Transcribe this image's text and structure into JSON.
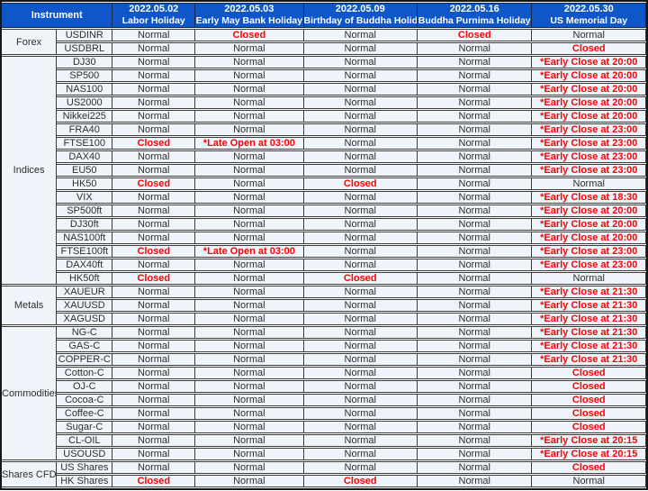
{
  "header": {
    "instrument_label": "Instrument"
  },
  "columns": [
    {
      "date": "2022.05.02",
      "holiday": "Labor Holiday"
    },
    {
      "date": "2022.05.03",
      "holiday": "Early May Bank Holiday"
    },
    {
      "date": "2022.05.09",
      "holiday": "Birthday of Buddha Holiday"
    },
    {
      "date": "2022.05.16",
      "holiday": "Buddha Purnima Holiday"
    },
    {
      "date": "2022.05.30",
      "holiday": "US Memorial Day"
    }
  ],
  "groups": [
    {
      "name": "Forex",
      "rows": [
        {
          "instrument": "USDINR",
          "values": [
            "Normal",
            "Closed",
            "Normal",
            "Closed",
            "Normal"
          ]
        },
        {
          "instrument": "USDBRL",
          "values": [
            "Normal",
            "Normal",
            "Normal",
            "Normal",
            "Closed"
          ]
        }
      ]
    },
    {
      "name": "Indices",
      "rows": [
        {
          "instrument": "DJ30",
          "values": [
            "Normal",
            "Normal",
            "Normal",
            "Normal",
            "*Early Close at 20:00"
          ]
        },
        {
          "instrument": "SP500",
          "values": [
            "Normal",
            "Normal",
            "Normal",
            "Normal",
            "*Early Close at 20:00"
          ]
        },
        {
          "instrument": "NAS100",
          "values": [
            "Normal",
            "Normal",
            "Normal",
            "Normal",
            "*Early Close at 20:00"
          ]
        },
        {
          "instrument": "US2000",
          "values": [
            "Normal",
            "Normal",
            "Normal",
            "Normal",
            "*Early Close at 20:00"
          ]
        },
        {
          "instrument": "Nikkei225",
          "values": [
            "Normal",
            "Normal",
            "Normal",
            "Normal",
            "*Early Close at 20:00"
          ]
        },
        {
          "instrument": "FRA40",
          "values": [
            "Normal",
            "Normal",
            "Normal",
            "Normal",
            "*Early Close at 23:00"
          ]
        },
        {
          "instrument": "FTSE100",
          "values": [
            "Closed",
            "*Late Open at 03:00",
            "Normal",
            "Normal",
            "*Early Close at 23:00"
          ]
        },
        {
          "instrument": "DAX40",
          "values": [
            "Normal",
            "Normal",
            "Normal",
            "Normal",
            "*Early Close at 23:00"
          ]
        },
        {
          "instrument": "EU50",
          "values": [
            "Normal",
            "Normal",
            "Normal",
            "Normal",
            "*Early Close at 23:00"
          ]
        },
        {
          "instrument": "HK50",
          "values": [
            "Closed",
            "Normal",
            "Closed",
            "Normal",
            "Normal"
          ]
        },
        {
          "instrument": "VIX",
          "values": [
            "Normal",
            "Normal",
            "Normal",
            "Normal",
            "*Early Close at 18:30"
          ]
        },
        {
          "instrument": "SP500ft",
          "values": [
            "Normal",
            "Normal",
            "Normal",
            "Normal",
            "*Early Close at 20:00"
          ]
        },
        {
          "instrument": "DJ30ft",
          "values": [
            "Normal",
            "Normal",
            "Normal",
            "Normal",
            "*Early Close at 20:00"
          ]
        },
        {
          "instrument": "NAS100ft",
          "values": [
            "Normal",
            "Normal",
            "Normal",
            "Normal",
            "*Early Close at 20:00"
          ]
        },
        {
          "instrument": "FTSE100ft",
          "values": [
            "Closed",
            "*Late Open at 03:00",
            "Normal",
            "Normal",
            "*Early Close at 23:00"
          ]
        },
        {
          "instrument": "DAX40ft",
          "values": [
            "Normal",
            "Normal",
            "Normal",
            "Normal",
            "*Early Close at 23:00"
          ]
        },
        {
          "instrument": "HK50ft",
          "values": [
            "Closed",
            "Normal",
            "Closed",
            "Normal",
            "Normal"
          ]
        }
      ]
    },
    {
      "name": "Metals",
      "rows": [
        {
          "instrument": "XAUEUR",
          "values": [
            "Normal",
            "Normal",
            "Normal",
            "Normal",
            "*Early Close at 21:30"
          ]
        },
        {
          "instrument": "XAUUSD",
          "values": [
            "Normal",
            "Normal",
            "Normal",
            "Normal",
            "*Early Close at 21:30"
          ]
        },
        {
          "instrument": "XAGUSD",
          "values": [
            "Normal",
            "Normal",
            "Normal",
            "Normal",
            "*Early Close at 21:30"
          ]
        }
      ]
    },
    {
      "name": "Commodities",
      "rows": [
        {
          "instrument": "NG-C",
          "values": [
            "Normal",
            "Normal",
            "Normal",
            "Normal",
            "*Early Close at 21:30"
          ]
        },
        {
          "instrument": "GAS-C",
          "values": [
            "Normal",
            "Normal",
            "Normal",
            "Normal",
            "*Early Close at 21:30"
          ]
        },
        {
          "instrument": "COPPER-C",
          "values": [
            "Normal",
            "Normal",
            "Normal",
            "Normal",
            "*Early Close at 21:30"
          ]
        },
        {
          "instrument": "Cotton-C",
          "values": [
            "Normal",
            "Normal",
            "Normal",
            "Normal",
            "Closed"
          ]
        },
        {
          "instrument": "OJ-C",
          "values": [
            "Normal",
            "Normal",
            "Normal",
            "Normal",
            "Closed"
          ]
        },
        {
          "instrument": "Cocoa-C",
          "values": [
            "Normal",
            "Normal",
            "Normal",
            "Normal",
            "Closed"
          ]
        },
        {
          "instrument": "Coffee-C",
          "values": [
            "Normal",
            "Normal",
            "Normal",
            "Normal",
            "Closed"
          ]
        },
        {
          "instrument": "Sugar-C",
          "values": [
            "Normal",
            "Normal",
            "Normal",
            "Normal",
            "Closed"
          ]
        },
        {
          "instrument": "CL-OIL",
          "values": [
            "Normal",
            "Normal",
            "Normal",
            "Normal",
            "*Early Close at 20:15"
          ]
        },
        {
          "instrument": "USOUSD",
          "values": [
            "Normal",
            "Normal",
            "Normal",
            "Normal",
            "*Early Close at 20:15"
          ]
        }
      ]
    },
    {
      "name": "Shares CFDs",
      "rows": [
        {
          "instrument": "US Shares",
          "values": [
            "Normal",
            "Normal",
            "Normal",
            "Normal",
            "Closed"
          ]
        },
        {
          "instrument": "HK Shares",
          "values": [
            "Closed",
            "Normal",
            "Closed",
            "Normal",
            "Normal"
          ]
        }
      ]
    }
  ],
  "colors": {
    "header_bg": "#0F56C8",
    "header_text": "#FFFFFF",
    "status_red": "#FF0000",
    "cell_bg": "#EFF4FA",
    "border_dark": "#3C3C3C"
  }
}
